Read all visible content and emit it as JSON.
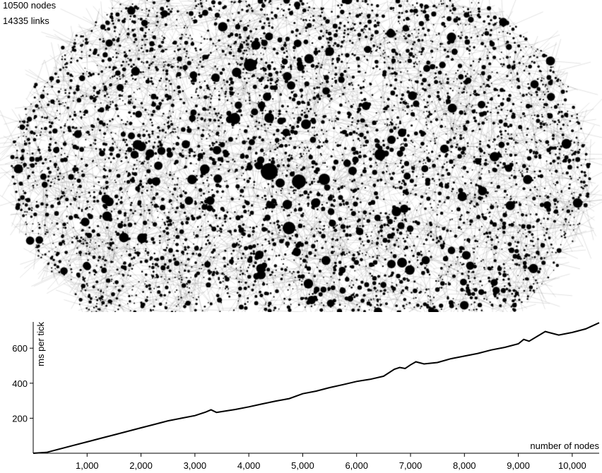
{
  "stats": {
    "nodes_label": "10500 nodes",
    "links_label": "14335 links"
  },
  "chart_data": {
    "type": "line",
    "title": "",
    "xlabel": "number of nodes",
    "ylabel": "ms per tick",
    "xlim": [
      0,
      10500
    ],
    "ylim": [
      0,
      750
    ],
    "x_ticks": [
      1000,
      2000,
      3000,
      4000,
      5000,
      6000,
      7000,
      8000,
      9000,
      10000
    ],
    "x_tick_labels": [
      "1,000",
      "2,000",
      "3,000",
      "4,000",
      "5,000",
      "6,000",
      "7,000",
      "8,000",
      "9,000",
      "10,000"
    ],
    "y_ticks": [
      200,
      400,
      600
    ],
    "y_tick_labels": [
      "200",
      "400",
      "600"
    ],
    "grid": false,
    "series": [
      {
        "x": [
          0,
          250,
          500,
          750,
          1000,
          1250,
          1500,
          1750,
          2000,
          2250,
          2500,
          2750,
          3000,
          3200,
          3300,
          3400,
          3500,
          3750,
          4000,
          4250,
          4500,
          4750,
          5000,
          5250,
          5500,
          5750,
          6000,
          6250,
          6500,
          6700,
          6800,
          6900,
          7000,
          7100,
          7250,
          7500,
          7750,
          8000,
          8250,
          8500,
          8750,
          9000,
          9100,
          9200,
          9500,
          9750,
          10000,
          10250,
          10500
        ],
        "y": [
          0,
          5,
          25,
          45,
          65,
          85,
          105,
          125,
          145,
          165,
          185,
          200,
          215,
          235,
          248,
          233,
          238,
          250,
          265,
          282,
          298,
          312,
          340,
          355,
          375,
          392,
          410,
          422,
          440,
          480,
          490,
          484,
          505,
          522,
          510,
          518,
          540,
          555,
          570,
          590,
          605,
          625,
          650,
          640,
          695,
          675,
          690,
          710,
          745
        ]
      }
    ]
  }
}
